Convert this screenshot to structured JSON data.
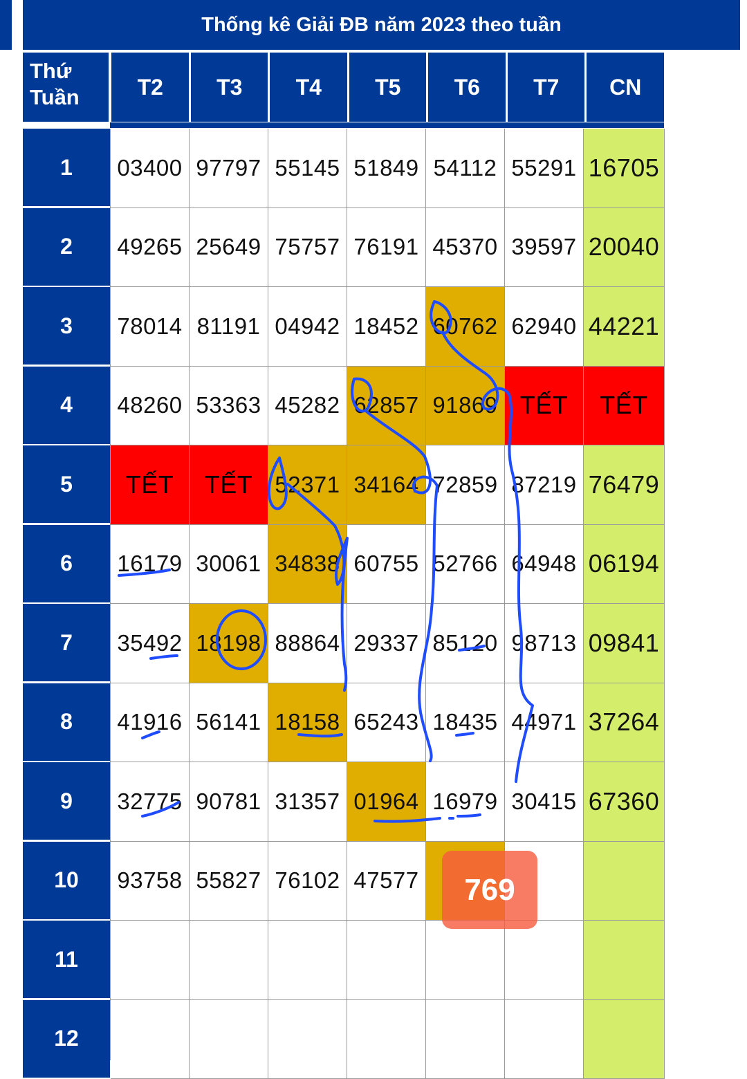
{
  "title": "Thống kê Giải ĐB năm 2023 theo tuần",
  "header": {
    "corner_line1": "Thứ",
    "corner_line2": "Tuần",
    "days": [
      "T2",
      "T3",
      "T4",
      "T5",
      "T6",
      "T7",
      "CN"
    ]
  },
  "weeks": [
    "1",
    "2",
    "3",
    "4",
    "5",
    "6",
    "7",
    "8",
    "9",
    "10",
    "11",
    "12"
  ],
  "rows": [
    [
      "03400",
      "97797",
      "55145",
      "51849",
      "54112",
      "55291",
      "16705"
    ],
    [
      "49265",
      "25649",
      "75757",
      "76191",
      "45370",
      "39597",
      "20040"
    ],
    [
      "78014",
      "81191",
      "04942",
      "18452",
      "60762",
      "62940",
      "44221"
    ],
    [
      "48260",
      "53363",
      "45282",
      "62857",
      "91869",
      "TẾT",
      "TẾT"
    ],
    [
      "TẾT",
      "TẾT",
      "52371",
      "34164",
      "72859",
      "87219",
      "76479"
    ],
    [
      "16179",
      "30061",
      "34838",
      "60755",
      "52766",
      "64948",
      "06194"
    ],
    [
      "35492",
      "18198",
      "88864",
      "29337",
      "85120",
      "98713",
      "09841"
    ],
    [
      "41916",
      "56141",
      "18158",
      "65243",
      "18435",
      "44971",
      "37264"
    ],
    [
      "32775",
      "90781",
      "31357",
      "01964",
      "16979",
      "30415",
      "67360"
    ],
    [
      "93758",
      "55827",
      "76102",
      "47577",
      "",
      "",
      ""
    ],
    [
      "",
      "",
      "",
      "",
      "",
      "",
      ""
    ],
    [
      "",
      "",
      "",
      "",
      "",
      "",
      ""
    ]
  ],
  "cell_style": [
    [
      "",
      "",
      "",
      "",
      "",
      "",
      "cn"
    ],
    [
      "",
      "",
      "",
      "",
      "",
      "",
      "cn"
    ],
    [
      "",
      "",
      "",
      "",
      "gold",
      "",
      "cn"
    ],
    [
      "",
      "",
      "",
      "gold",
      "gold",
      "red",
      "red"
    ],
    [
      "red",
      "red",
      "gold",
      "gold",
      "",
      "",
      "cn"
    ],
    [
      "",
      "",
      "gold",
      "",
      "",
      "",
      "cn"
    ],
    [
      "",
      "gold",
      "",
      "",
      "",
      "",
      "cn"
    ],
    [
      "",
      "",
      "gold",
      "",
      "",
      "",
      "cn"
    ],
    [
      "",
      "",
      "",
      "gold",
      "",
      "",
      "cn"
    ],
    [
      "",
      "",
      "",
      "",
      "gold",
      "",
      "cn"
    ],
    [
      "",
      "",
      "",
      "",
      "",
      "",
      "cn"
    ],
    [
      "",
      "",
      "",
      "",
      "",
      "",
      "cn"
    ]
  ],
  "badge": {
    "text": "769"
  },
  "colors": {
    "header_blue": "#003a96",
    "sunday_green": "#d4ed6a",
    "highlight_gold": "#dfae00",
    "holiday_red": "#ff0000",
    "annotation_ink": "#1f4cff"
  }
}
